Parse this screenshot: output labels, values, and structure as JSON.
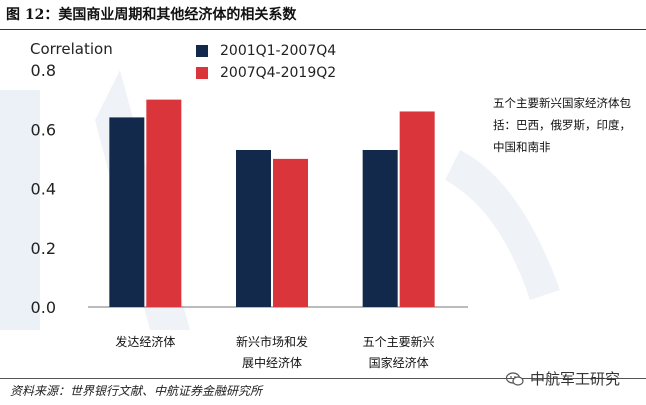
{
  "figure": {
    "title": "图 12：美国商业周期和其他经济体的相关系数",
    "note": "五个主要新兴国家经济体包括：巴西，俄罗斯，印度，中国和南非",
    "source": "资料来源：世界银行文献、中航证券金融研究所",
    "brand": "中航军工研究"
  },
  "chart_data": {
    "type": "bar",
    "title": "",
    "ylabel": "Correlation",
    "xlabel": "",
    "categories": [
      "发达经济体",
      "新兴市场和发展中经济体",
      "五个主要新兴国家经济体"
    ],
    "category_lines": [
      [
        "发达经济体"
      ],
      [
        "新兴市场和发",
        "展中经济体"
      ],
      [
        "五个主要新兴",
        "国家经济体"
      ]
    ],
    "series": [
      {
        "name": "2001Q1-2007Q4",
        "color": "#13294b",
        "values": [
          0.64,
          0.53,
          0.53
        ]
      },
      {
        "name": "2007Q4-2019Q2",
        "color": "#d9353a",
        "values": [
          0.7,
          0.5,
          0.66
        ]
      }
    ],
    "ylim": [
      0,
      0.8
    ],
    "yticks": [
      "0.0",
      "0.2",
      "0.4",
      "0.6",
      "0.8"
    ],
    "grid": false,
    "legend_position": "top"
  }
}
